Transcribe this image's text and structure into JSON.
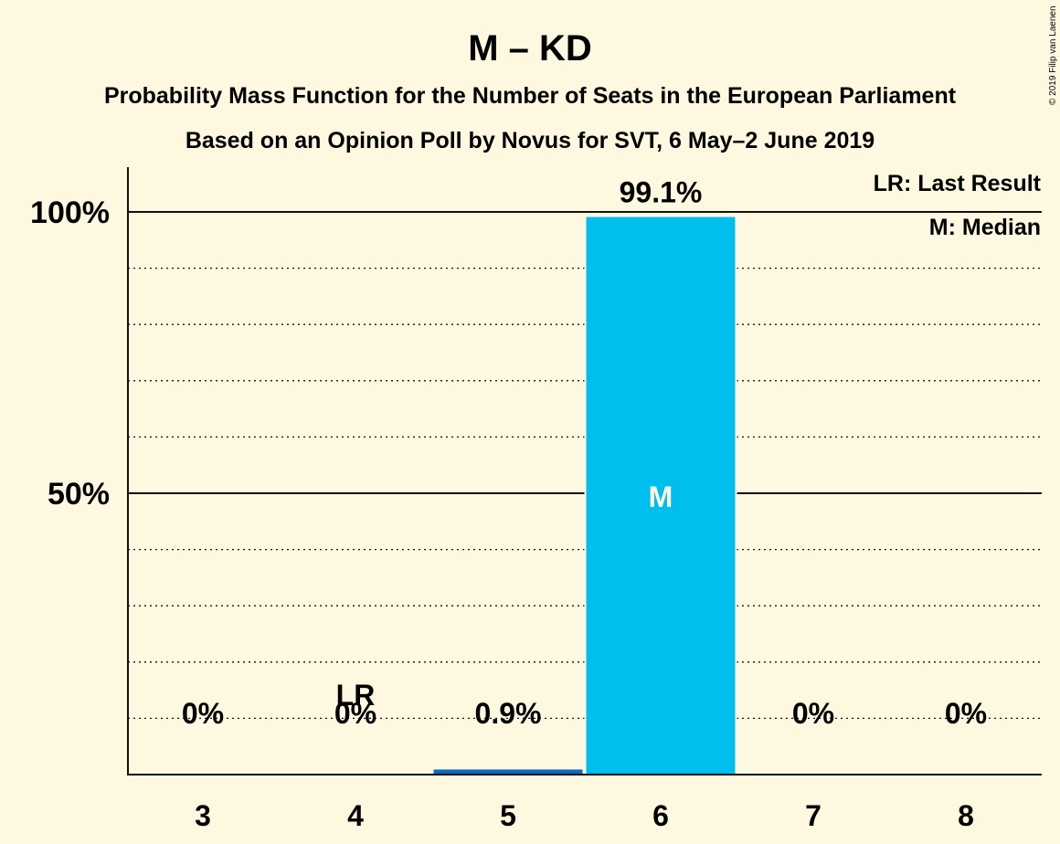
{
  "chart_data": {
    "type": "bar",
    "title": "M – KD",
    "subtitle": "Probability Mass Function for the Number of Seats in the European Parliament",
    "subtitle2": "Based on an Opinion Poll by Novus for SVT, 6 May–2 June 2019",
    "copyright": "© 2019 Filip van Laenen",
    "categories": [
      "3",
      "4",
      "5",
      "6",
      "7",
      "8"
    ],
    "values": [
      0,
      0,
      0.9,
      99.1,
      0,
      0
    ],
    "value_labels": [
      "0%",
      "0%",
      "0.9%",
      "99.1%",
      "0%",
      "0%"
    ],
    "ylim": [
      0,
      100
    ],
    "yticks": [
      {
        "value": 50,
        "label": "50%"
      },
      {
        "value": 100,
        "label": "100%"
      }
    ],
    "minor_gridlines": [
      10,
      20,
      30,
      40,
      60,
      70,
      80,
      90
    ],
    "last_result": {
      "category": "4",
      "label": "LR"
    },
    "median": {
      "category": "6",
      "label": "M"
    },
    "legend": {
      "placement": "top-right",
      "items": [
        "LR: Last Result",
        "M: Median"
      ]
    },
    "bar_colors": {
      "median": "#00BFEF",
      "other": "#0C6AC1"
    },
    "grid": true
  }
}
